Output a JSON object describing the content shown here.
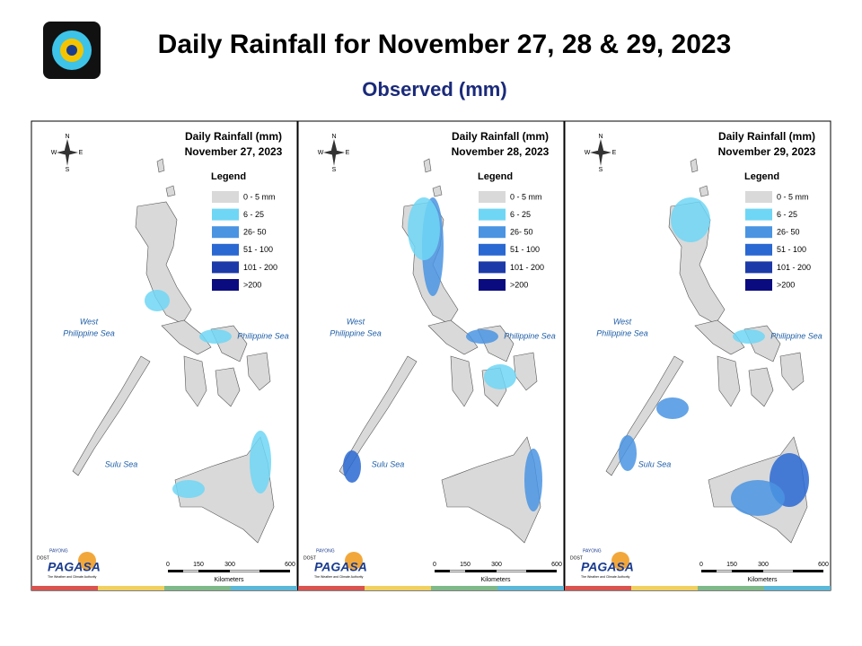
{
  "header": {
    "title": "Daily Rainfall for November 27, 28 & 29, 2023",
    "subtitle": "Observed (mm)"
  },
  "panels": [
    {
      "heading": "Daily Rainfall (mm)",
      "date": "November 27, 2023"
    },
    {
      "heading": "Daily Rainfall (mm)",
      "date": "November 28, 2023"
    },
    {
      "heading": "Daily Rainfall (mm)",
      "date": "November 29, 2023"
    }
  ],
  "legend": {
    "title": "Legend",
    "items": [
      {
        "label": "0 - 5 mm",
        "color": "#d9d9d9"
      },
      {
        "label": "6 - 25",
        "color": "#6fd6f5"
      },
      {
        "label": "26- 50",
        "color": "#4a94e2"
      },
      {
        "label": "51 - 100",
        "color": "#2a68d2"
      },
      {
        "label": "101 - 200",
        "color": "#1c3aa8"
      },
      {
        "label": ">200",
        "color": "#0b0b80"
      }
    ]
  },
  "map_labels": {
    "west_sea": [
      "West",
      "Philippine Sea"
    ],
    "east_sea": "Philippine Sea",
    "sulu_sea": "Sulu Sea"
  },
  "compass": {
    "n": "N",
    "s": "S",
    "w": "W",
    "e": "E"
  },
  "scale": {
    "ticks": [
      "0",
      "150",
      "300",
      "600"
    ],
    "unit": "Kilometers"
  },
  "logo": {
    "dost": "DOST",
    "payong": "PAYONG",
    "agency": "PAGASA",
    "tagline": "The Weather and Climate Authority"
  }
}
